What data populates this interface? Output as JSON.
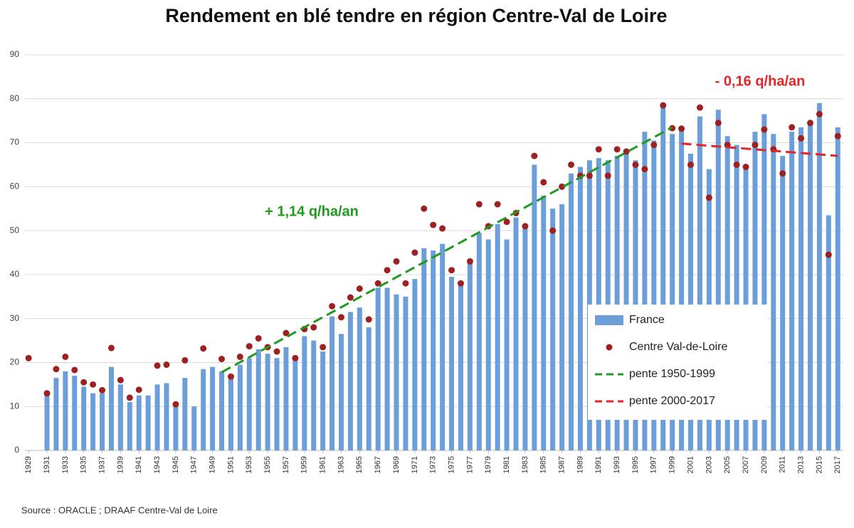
{
  "chart_data": {
    "type": "combo",
    "title": "Rendement en blé tendre en région Centre-Val de Loire",
    "source": "Source : ORACLE ; DRAAF Centre-Val de Loire",
    "annotations": [
      {
        "text": "+ 1,14 q/ha/an",
        "color": "#1f9a1f"
      },
      {
        "text": "- 0,16 q/ha/an",
        "color": "#e0262a"
      }
    ],
    "x": [
      1929,
      1930,
      1931,
      1932,
      1933,
      1934,
      1935,
      1936,
      1937,
      1938,
      1939,
      1940,
      1941,
      1942,
      1943,
      1944,
      1945,
      1946,
      1947,
      1948,
      1949,
      1950,
      1951,
      1952,
      1953,
      1954,
      1955,
      1956,
      1957,
      1958,
      1959,
      1960,
      1961,
      1962,
      1963,
      1964,
      1965,
      1966,
      1967,
      1968,
      1969,
      1970,
      1971,
      1972,
      1973,
      1974,
      1975,
      1976,
      1977,
      1978,
      1979,
      1980,
      1981,
      1982,
      1983,
      1984,
      1985,
      1986,
      1987,
      1988,
      1989,
      1990,
      1991,
      1992,
      1993,
      1994,
      1995,
      1996,
      1997,
      1998,
      1999,
      2000,
      2001,
      2002,
      2003,
      2004,
      2005,
      2006,
      2007,
      2008,
      2009,
      2010,
      2011,
      2012,
      2013,
      2014,
      2015,
      2016,
      2017
    ],
    "xlim": [
      1928.6,
      2017.6
    ],
    "xticks": [
      1929,
      1931,
      1933,
      1935,
      1937,
      1939,
      1941,
      1943,
      1945,
      1947,
      1949,
      1951,
      1953,
      1955,
      1957,
      1959,
      1961,
      1963,
      1965,
      1967,
      1969,
      1971,
      1973,
      1975,
      1977,
      1979,
      1981,
      1983,
      1985,
      1987,
      1989,
      1991,
      1993,
      1995,
      1997,
      1999,
      2001,
      2003,
      2005,
      2007,
      2009,
      2011,
      2013,
      2015,
      2017
    ],
    "ylim": [
      0,
      90
    ],
    "yticks": [
      0,
      10,
      20,
      30,
      40,
      50,
      60,
      70,
      80,
      90
    ],
    "grid": true,
    "series": [
      {
        "name": "France",
        "type": "bar",
        "color": "#6c9fd9",
        "values": [
          null,
          null,
          12.5,
          16.5,
          18,
          17,
          14.5,
          13,
          13,
          19,
          15,
          11,
          12.5,
          12.5,
          15,
          15.3,
          10,
          16.5,
          10,
          18.5,
          19,
          18,
          17,
          19.5,
          21,
          23,
          22,
          21,
          23.5,
          21,
          26,
          25,
          22.5,
          30.5,
          26.5,
          31.5,
          32.5,
          28,
          37,
          37,
          35.5,
          35,
          39,
          46,
          45.5,
          47,
          39.5,
          38,
          42.5,
          49.5,
          48,
          51.5,
          48,
          53,
          51,
          65,
          58,
          55,
          56,
          63,
          64.5,
          66,
          66.5,
          66,
          67,
          68,
          66,
          72.5,
          70.5,
          78,
          72,
          73,
          67.5,
          76,
          64,
          77.5,
          71.5,
          69.5,
          64.5,
          72.5,
          76.5,
          72,
          67,
          72.5,
          73.5,
          74,
          79,
          53.5,
          73.5
        ]
      },
      {
        "name": "Centre Val-de-Loire",
        "type": "scatter",
        "color": "#9e2020",
        "values": [
          21,
          null,
          13,
          18.5,
          21.3,
          18.3,
          15.5,
          15,
          13.7,
          23.3,
          16,
          12,
          13.8,
          null,
          19.3,
          19.5,
          10.5,
          20.5,
          null,
          23.2,
          null,
          20.8,
          16.8,
          21.3,
          23.7,
          25.5,
          23.5,
          22.5,
          26.7,
          21,
          27.6,
          28,
          23.5,
          32.8,
          30.3,
          34.8,
          36.8,
          29.8,
          38,
          41,
          43,
          38,
          45,
          55,
          51.3,
          50.5,
          41,
          38,
          43,
          56,
          51,
          56,
          52,
          54,
          51,
          67,
          61,
          50,
          60,
          65,
          62.5,
          62.5,
          68.5,
          62.5,
          68.5,
          68,
          65,
          64,
          69.5,
          78.5,
          73.3,
          73.2,
          65,
          78,
          57.5,
          74.5,
          69.5,
          65,
          64.5,
          69.5,
          73,
          68.5,
          63,
          73.5,
          71,
          74.5,
          76.5,
          44.5,
          71.5
        ]
      },
      {
        "name": "pente 1950-1999",
        "type": "line",
        "color": "#1f9a1f",
        "dashed": true,
        "x": [
          1950,
          1999
        ],
        "values": [
          17.8,
          73.5
        ]
      },
      {
        "name": "pente 2000-2017",
        "type": "line",
        "color": "#e0262a",
        "dashed": true,
        "x": [
          2000,
          2017
        ],
        "values": [
          69.8,
          67
        ]
      }
    ]
  }
}
